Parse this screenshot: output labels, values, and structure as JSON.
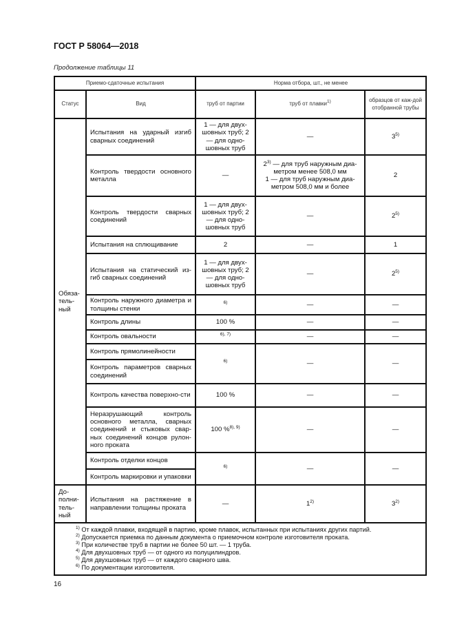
{
  "header": {
    "doc_title": "ГОСТ Р 58064—2018",
    "caption": "Продолжение таблицы 11"
  },
  "table": {
    "group_headers": [
      "Приемо-сдаточные испытания",
      "Норма отбора, шт., не менее"
    ],
    "columns": [
      "Статус",
      "Вид",
      "труб от партии",
      "труб от плавки",
      "образцов от каж-дой отобранной трубы"
    ],
    "plavki_sup": "1)",
    "status_mandatory": "Обяза-тель-ный",
    "status_additional": "До-полни-тель-ный",
    "rows": [
      {
        "vid": "Испытания на ударный изгиб сварных соединений",
        "partii": "1 — для двух-шовных труб; 2 — для одно-шовных труб",
        "plavki": "—",
        "obr": "3",
        "obr_sup": "5)"
      },
      {
        "vid": "Контроль твердости основного металла",
        "partii": "—",
        "plavki_a": "2",
        "plavki_a_sup": "3)",
        "plavki_b": " — для труб наружным диа-метром менее 508,0 мм",
        "plavki_c": "1 — для труб наружным диа-метром 508,0 мм и более",
        "obr": "2"
      },
      {
        "vid": "Контроль твердости сварных соединений",
        "partii": "1 — для двух-шовных труб; 2 — для одно-шовных труб",
        "plavki": "—",
        "obr": "2",
        "obr_sup": "5)"
      },
      {
        "vid": "Испытания на сплющивание",
        "partii": "2",
        "plavki": "—",
        "obr": "1"
      },
      {
        "vid": "Испытания на статический из-гиб сварных соединений",
        "partii": "1 — для двух-шовных труб; 2 — для одно-шовных труб",
        "plavki": "—",
        "obr": "2",
        "obr_sup": "5)"
      },
      {
        "vid": "Контроль наружного диаметра и толщины стенки",
        "partii_sup": "6)",
        "plavki": "—",
        "obr": "—"
      },
      {
        "vid": "Контроль длины",
        "partii": "100 %",
        "plavki": "—",
        "obr": "—"
      },
      {
        "vid": "Контроль овальности",
        "partii_sup": "6), 7)",
        "plavki": "—",
        "obr": "—"
      },
      {
        "vid": "Контроль прямолинейности",
        "vid2": "Контроль параметров сварных соединений",
        "partii_sup": "6)",
        "plavki": "—",
        "obr": "—"
      },
      {
        "vid": "Контроль качества поверхно-сти",
        "partii": "100 %",
        "plavki": "—",
        "obr": "—"
      },
      {
        "vid": "Неразрушающий контроль основного металла, сварных соединений и стыковых свар-ных соединений концов рулон-ного проката",
        "partii": "100 %",
        "partii_sup": "8), 9)",
        "plavki": "—",
        "obr": "—"
      },
      {
        "vid": "Контроль отделки концов",
        "vid2": "Контроль маркировки и упаковки",
        "partii_sup": "6)",
        "plavki": "—",
        "obr": "—"
      },
      {
        "vid": "Испытания на растяжение в направлении толщины проката",
        "partii": "—",
        "plavki": "1",
        "plavki_sup": "2)",
        "obr": "3",
        "obr_sup": "2)"
      }
    ],
    "footnotes": [
      {
        "n": "1)",
        "text": "От каждой плавки, входящей в партию, кроме плавок, испытанных при испытаниях других партий."
      },
      {
        "n": "2)",
        "text": "Допускается приемка по данным документа о приемочном контроле изготовителя проката."
      },
      {
        "n": "3)",
        "text": "При количестве труб в партии не более 50 шт. — 1 труба."
      },
      {
        "n": "4)",
        "text": "Для двухшовных труб — от одного из полуцилиндров."
      },
      {
        "n": "5)",
        "text": "Для двухшовных труб — от каждого сварного шва."
      },
      {
        "n": "6)",
        "text": "По документации изготовителя."
      }
    ]
  },
  "page_number": "16"
}
